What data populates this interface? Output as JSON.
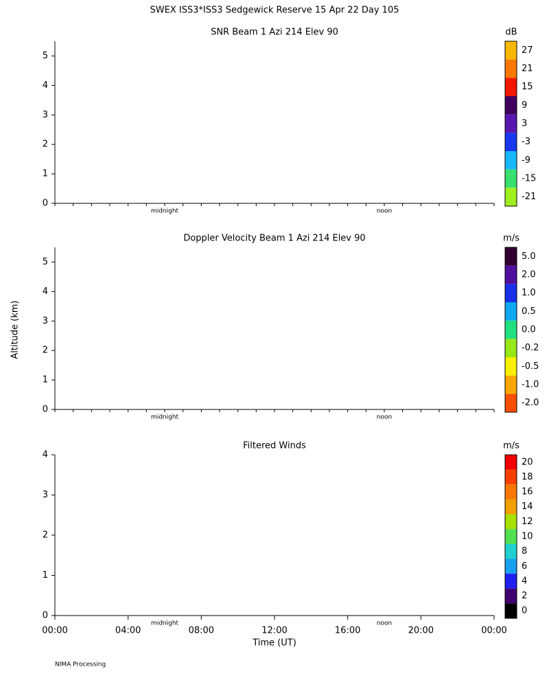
{
  "title": "SWEX ISS3*ISS3 Sedgewick Reserve  15 Apr 22 Day 105",
  "y_label": "Altitude (km)",
  "footer": "NIMA Processing",
  "chart_data": [
    {
      "type": "heatmap",
      "title": "SNR Beam 1 Azi 214 Elev 90",
      "xlim": [
        0,
        24
      ],
      "xticks": [
        0,
        1,
        2,
        3,
        4,
        5,
        6,
        7,
        8,
        9,
        10,
        11,
        12,
        13,
        14,
        15,
        16,
        17,
        18,
        19,
        20,
        21,
        22,
        23,
        24
      ],
      "ylim": [
        0,
        5.5
      ],
      "yticks": [
        0,
        1,
        2,
        3,
        4,
        5
      ],
      "annotations": [
        {
          "value": 6,
          "label": "midnight"
        },
        {
          "value": 18,
          "label": "noon"
        }
      ],
      "colorbar": {
        "unit": "dB",
        "ticks": [
          27,
          21,
          15,
          9,
          3,
          -3,
          -9,
          -15,
          -21
        ],
        "colors": [
          "#f8b800",
          "#f87800",
          "#f01800",
          "#400060",
          "#5818b0",
          "#1838f0",
          "#18b8f8",
          "#38e070",
          "#a0f020"
        ]
      }
    },
    {
      "type": "heatmap",
      "title": "Doppler Velocity Beam 1 Azi 214 Elev 90",
      "xlim": [
        0,
        24
      ],
      "xticks": [
        0,
        1,
        2,
        3,
        4,
        5,
        6,
        7,
        8,
        9,
        10,
        11,
        12,
        13,
        14,
        15,
        16,
        17,
        18,
        19,
        20,
        21,
        22,
        23,
        24
      ],
      "ylim": [
        0,
        5.5
      ],
      "yticks": [
        0,
        1,
        2,
        3,
        4,
        5
      ],
      "annotations": [
        {
          "value": 6,
          "label": "midnight"
        },
        {
          "value": 18,
          "label": "noon"
        }
      ],
      "colorbar": {
        "unit": "m/s",
        "ticks": [
          {
            "value": 5,
            "label": "5.0"
          },
          {
            "value": 2,
            "label": "2.0"
          },
          {
            "value": 1,
            "label": "1.0"
          },
          {
            "value": 0.5,
            "label": "0.5"
          },
          {
            "value": 0,
            "label": "0.0"
          },
          -0.2,
          -0.5,
          {
            "value": -1,
            "label": "-1.0"
          },
          {
            "value": -2,
            "label": "-2.0"
          }
        ],
        "colors": [
          "#300030",
          "#5010a0",
          "#1830e8",
          "#10a8f0",
          "#20e080",
          "#98e818",
          "#f8f000",
          "#f8a800",
          "#f85000"
        ]
      }
    },
    {
      "type": "barbs",
      "title": "Filtered Winds",
      "x_label": "Time (UT)",
      "xlim": [
        0,
        24
      ],
      "xticks": [
        {
          "value": 0,
          "label": "00:00"
        },
        {
          "value": 4,
          "label": "04:00"
        },
        {
          "value": 8,
          "label": "08:00"
        },
        {
          "value": 12,
          "label": "12:00"
        },
        {
          "value": 16,
          "label": "16:00"
        },
        {
          "value": 20,
          "label": "20:00"
        },
        {
          "value": 24,
          "label": "00:00"
        }
      ],
      "ylim": [
        0,
        4
      ],
      "yticks": [
        0,
        1,
        2,
        3,
        4
      ],
      "annotations": [
        {
          "value": 6,
          "label": "midnight"
        },
        {
          "value": 18,
          "label": "noon"
        }
      ],
      "colorbar": {
        "unit": "m/s",
        "ticks": [
          20,
          18,
          16,
          14,
          12,
          10,
          8,
          6,
          4,
          2,
          0
        ],
        "colors": [
          "#f00000",
          "#f84000",
          "#f87800",
          "#f0a000",
          "#a8e000",
          "#50e050",
          "#20d0d0",
          "#18a0f0",
          "#2020f0",
          "#400070",
          "#000000"
        ]
      }
    }
  ]
}
